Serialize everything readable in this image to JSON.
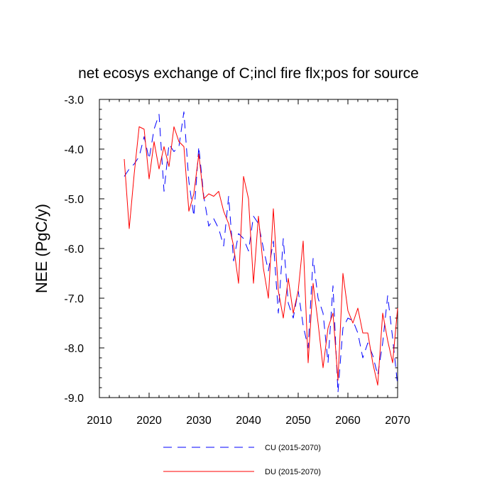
{
  "chart_data": {
    "type": "line",
    "title": "net ecosys exchange of C;incl fire flx;pos for source",
    "xlabel": "",
    "ylabel": "NEE  (PgC/y)",
    "xlim": [
      2010,
      2070
    ],
    "ylim": [
      -9.0,
      -3.0
    ],
    "xticks": [
      2010,
      2020,
      2030,
      2040,
      2050,
      2060,
      2070
    ],
    "xtick_labels": [
      "2010",
      "2020",
      "2030",
      "2040",
      "2050",
      "2060",
      "2070"
    ],
    "yticks": [
      -3.0,
      -4.0,
      -5.0,
      -6.0,
      -7.0,
      -8.0,
      -9.0
    ],
    "ytick_labels": [
      "-3.0",
      "-4.0",
      "-5.0",
      "-6.0",
      "-7.0",
      "-8.0",
      "-9.0"
    ],
    "x": [
      2015,
      2016,
      2017,
      2018,
      2019,
      2020,
      2021,
      2022,
      2023,
      2024,
      2025,
      2026,
      2027,
      2028,
      2029,
      2030,
      2031,
      2032,
      2033,
      2034,
      2035,
      2036,
      2037,
      2038,
      2039,
      2040,
      2041,
      2042,
      2043,
      2044,
      2045,
      2046,
      2047,
      2048,
      2049,
      2050,
      2051,
      2052,
      2053,
      2054,
      2055,
      2056,
      2057,
      2058,
      2059,
      2060,
      2061,
      2062,
      2063,
      2064,
      2065,
      2066,
      2067,
      2068,
      2069,
      2070
    ],
    "series": [
      {
        "name": "CU (2015-2070)",
        "color": "#0000ff",
        "dash": "dashed",
        "values": [
          -4.55,
          -4.4,
          -4.3,
          -4.15,
          -3.75,
          -4.2,
          -3.6,
          -3.3,
          -4.85,
          -3.9,
          -4.05,
          -3.95,
          -3.25,
          -4.65,
          -5.35,
          -3.95,
          -4.95,
          -5.55,
          -5.4,
          -5.6,
          -5.95,
          -4.95,
          -6.25,
          -5.7,
          -5.8,
          -6.05,
          -5.35,
          -5.5,
          -6.0,
          -6.45,
          -5.85,
          -7.3,
          -5.8,
          -7.1,
          -7.4,
          -6.85,
          -7.55,
          -8.0,
          -6.2,
          -7.0,
          -7.3,
          -8.3,
          -6.75,
          -8.9,
          -7.6,
          -7.4,
          -7.45,
          -7.7,
          -8.2,
          -7.9,
          -8.15,
          -8.55,
          -7.9,
          -6.95,
          -7.8,
          -8.75
        ]
      },
      {
        "name": "DU (2015-2070)",
        "color": "#ff0000",
        "dash": "solid",
        "values": [
          -4.2,
          -5.6,
          -4.5,
          -3.55,
          -3.6,
          -4.6,
          -3.85,
          -4.4,
          -3.95,
          -4.35,
          -3.55,
          -3.85,
          -3.95,
          -5.25,
          -4.9,
          -4.1,
          -5.0,
          -4.9,
          -4.95,
          -4.85,
          -5.25,
          -5.5,
          -5.95,
          -6.7,
          -4.55,
          -5.0,
          -6.7,
          -5.35,
          -6.4,
          -7.0,
          -5.2,
          -6.85,
          -7.4,
          -6.6,
          -7.3,
          -6.85,
          -5.85,
          -8.3,
          -6.7,
          -7.5,
          -8.4,
          -7.6,
          -7.3,
          -8.65,
          -6.5,
          -7.25,
          -7.5,
          -7.2,
          -7.7,
          -7.7,
          -8.3,
          -8.75,
          -7.3,
          -7.85,
          -8.3,
          -7.2
        ]
      }
    ],
    "legend_position": "bottom"
  }
}
